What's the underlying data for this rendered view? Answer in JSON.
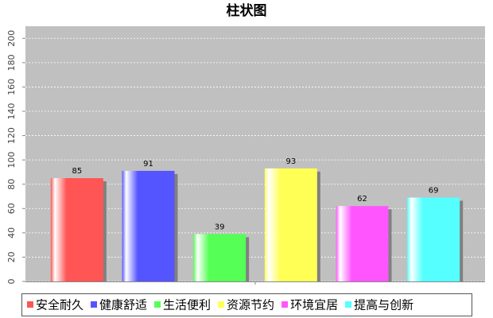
{
  "chart_data": {
    "type": "bar",
    "title": "柱状图",
    "categories": [
      null
    ],
    "series": [
      {
        "name": "安全耐久",
        "color": "#ff5555",
        "values": [
          85
        ]
      },
      {
        "name": "健康舒适",
        "color": "#5555ff",
        "values": [
          91
        ]
      },
      {
        "name": "生活便利",
        "color": "#55ff55",
        "values": [
          39
        ]
      },
      {
        "name": "资源节约",
        "color": "#ffff55",
        "values": [
          93
        ]
      },
      {
        "name": "环境宜居",
        "color": "#ff55ff",
        "values": [
          62
        ]
      },
      {
        "name": "提高与创新",
        "color": "#55ffff",
        "values": [
          69
        ]
      }
    ],
    "ylim": [
      0,
      210
    ],
    "yticks": [
      0,
      20,
      40,
      60,
      80,
      100,
      120,
      140,
      160,
      180,
      200
    ],
    "grid": true,
    "legend": "bottom"
  }
}
